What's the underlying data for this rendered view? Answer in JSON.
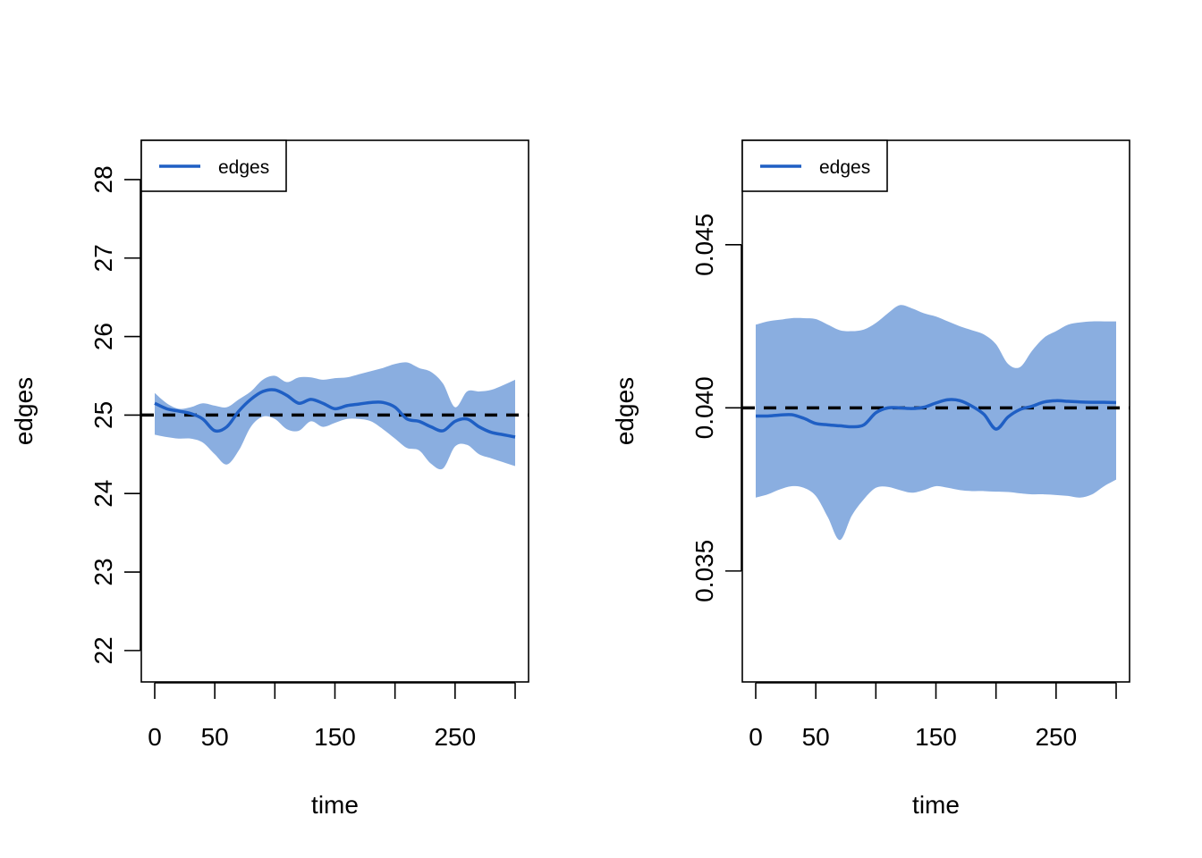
{
  "colors": {
    "line": "#1f5fc4",
    "band": "#8aaee0",
    "ref": "#000000",
    "axis": "#000000"
  },
  "chart_data": [
    {
      "type": "line",
      "xlabel": "time",
      "ylabel": "edges",
      "xlim": [
        -10,
        310
      ],
      "ylim": [
        21.6,
        28.5
      ],
      "x_ticks": [
        0,
        50,
        100,
        150,
        200,
        250,
        300
      ],
      "x_tick_labels": [
        "0",
        "50",
        "",
        "150",
        "",
        "250",
        ""
      ],
      "y_ticks": [
        22,
        23,
        24,
        25,
        26,
        27,
        28
      ],
      "y_tick_labels": [
        "22",
        "23",
        "24",
        "25",
        "26",
        "27",
        "28"
      ],
      "reference_line": 25,
      "legend": {
        "position": "top-left",
        "entries": [
          "edges"
        ]
      },
      "series": [
        {
          "name": "edges",
          "x": [
            0,
            10,
            20,
            30,
            40,
            50,
            60,
            70,
            80,
            90,
            100,
            110,
            120,
            130,
            140,
            150,
            160,
            170,
            180,
            190,
            200,
            210,
            220,
            230,
            240,
            250,
            260,
            270,
            280,
            290,
            300
          ],
          "y": [
            25.15,
            25.08,
            25.05,
            25.02,
            24.95,
            24.8,
            24.85,
            25.05,
            25.2,
            25.3,
            25.32,
            25.25,
            25.15,
            25.2,
            25.15,
            25.08,
            25.12,
            25.14,
            25.16,
            25.16,
            25.1,
            24.95,
            24.92,
            24.85,
            24.8,
            24.92,
            24.95,
            24.85,
            24.78,
            24.75,
            24.72
          ],
          "band_lower": [
            24.75,
            24.72,
            24.7,
            24.7,
            24.65,
            24.5,
            24.37,
            24.55,
            24.85,
            24.98,
            24.95,
            24.82,
            24.8,
            24.92,
            24.85,
            24.9,
            24.95,
            24.95,
            24.92,
            24.82,
            24.7,
            24.58,
            24.55,
            24.38,
            24.32,
            24.6,
            24.62,
            24.5,
            24.45,
            24.4,
            24.35
          ],
          "band_upper": [
            25.28,
            25.15,
            25.08,
            25.1,
            25.15,
            25.12,
            25.1,
            25.2,
            25.3,
            25.45,
            25.5,
            25.42,
            25.48,
            25.48,
            25.45,
            25.47,
            25.48,
            25.52,
            25.56,
            25.6,
            25.65,
            25.67,
            25.6,
            25.55,
            25.4,
            25.1,
            25.3,
            25.3,
            25.32,
            25.38,
            25.45
          ]
        }
      ]
    },
    {
      "type": "line",
      "xlabel": "time",
      "ylabel": "edges",
      "xlim": [
        -10,
        310
      ],
      "ylim": [
        0.0316,
        0.0482
      ],
      "x_ticks": [
        0,
        50,
        100,
        150,
        200,
        250,
        300
      ],
      "x_tick_labels": [
        "0",
        "50",
        "",
        "150",
        "",
        "250",
        ""
      ],
      "y_ticks": [
        0.035,
        0.04,
        0.045
      ],
      "y_tick_labels": [
        "0.035",
        "0.040",
        "0.045"
      ],
      "reference_line": 0.04,
      "legend": {
        "position": "top-left",
        "entries": [
          "edges"
        ]
      },
      "series": [
        {
          "name": "edges",
          "x": [
            0,
            10,
            20,
            30,
            40,
            50,
            60,
            70,
            80,
            90,
            100,
            110,
            120,
            130,
            140,
            150,
            160,
            170,
            180,
            190,
            200,
            210,
            220,
            230,
            240,
            250,
            260,
            270,
            280,
            290,
            300
          ],
          "y": [
            0.03975,
            0.03975,
            0.03978,
            0.03979,
            0.03968,
            0.03952,
            0.03948,
            0.03945,
            0.03942,
            0.03948,
            0.03985,
            0.04,
            0.04,
            0.03998,
            0.04002,
            0.04015,
            0.04025,
            0.04022,
            0.04005,
            0.0398,
            0.03935,
            0.03972,
            0.03995,
            0.04005,
            0.04018,
            0.04022,
            0.0402,
            0.04018,
            0.04017,
            0.04017,
            0.04016
          ],
          "band_lower": [
            0.03725,
            0.03735,
            0.0375,
            0.0376,
            0.03755,
            0.0373,
            0.03665,
            0.03595,
            0.0367,
            0.0372,
            0.03755,
            0.03758,
            0.03748,
            0.0374,
            0.03748,
            0.0376,
            0.03755,
            0.03748,
            0.03745,
            0.03745,
            0.03743,
            0.03742,
            0.03738,
            0.03735,
            0.03735,
            0.03733,
            0.0373,
            0.03725,
            0.03735,
            0.0376,
            0.0378
          ],
          "band_upper": [
            0.04255,
            0.04265,
            0.0427,
            0.04275,
            0.04275,
            0.04272,
            0.04255,
            0.04238,
            0.04235,
            0.0424,
            0.0426,
            0.0429,
            0.04315,
            0.04305,
            0.0429,
            0.0428,
            0.04265,
            0.0425,
            0.04238,
            0.04225,
            0.04195,
            0.04135,
            0.04125,
            0.04175,
            0.04215,
            0.04235,
            0.04255,
            0.04262,
            0.04265,
            0.04265,
            0.04265
          ]
        }
      ]
    }
  ]
}
